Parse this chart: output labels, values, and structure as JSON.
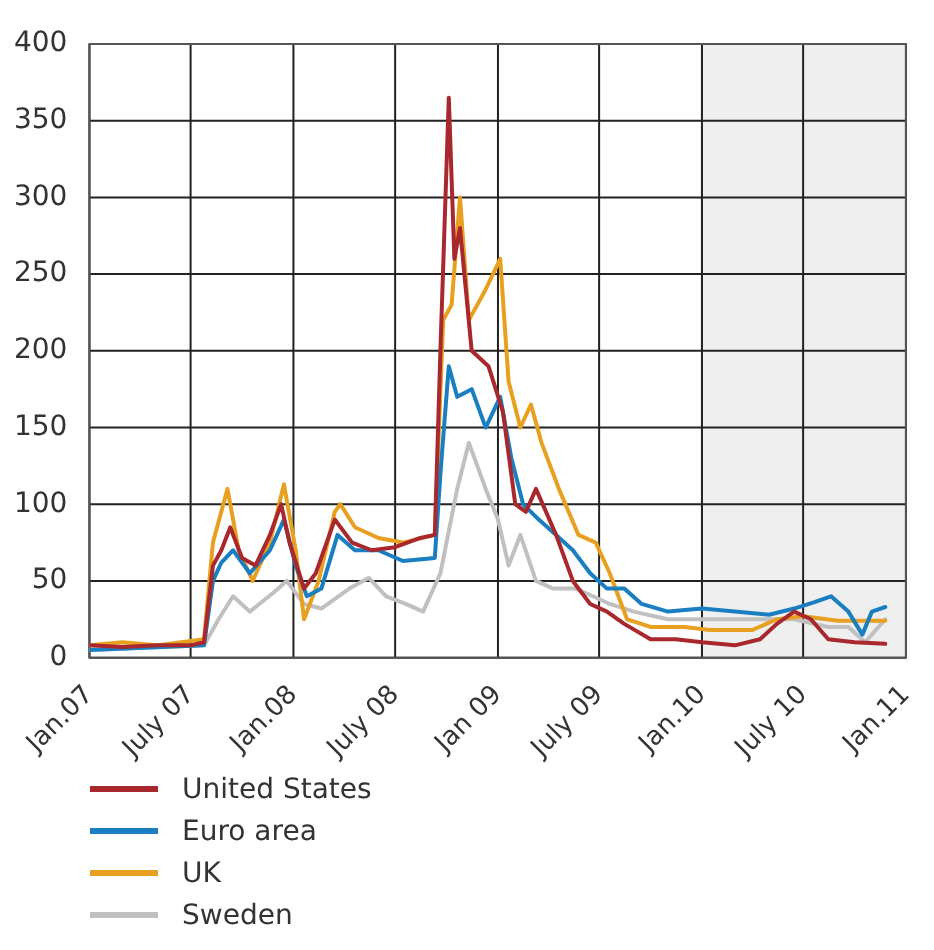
{
  "chart_data": {
    "type": "line",
    "xlim": [
      "2007-01-01",
      "2011-01-01"
    ],
    "xticks": [
      {
        "value": "2007-01-01",
        "label": "Jan.07"
      },
      {
        "value": "2007-07-01",
        "label": "July 07"
      },
      {
        "value": "2008-01-01",
        "label": "Jan.08"
      },
      {
        "value": "2008-07-01",
        "label": "July 08"
      },
      {
        "value": "2009-01-01",
        "label": "Jan 09"
      },
      {
        "value": "2009-07-01",
        "label": "July 09"
      },
      {
        "value": "2010-01-01",
        "label": "Jan.10"
      },
      {
        "value": "2010-07-01",
        "label": "July 10"
      },
      {
        "value": "2011-01-01",
        "label": "Jan.11"
      }
    ],
    "ylim": [
      0,
      400
    ],
    "yticks": [
      0,
      50,
      100,
      150,
      200,
      250,
      300,
      350,
      400
    ],
    "grid": true,
    "legend": "bottom",
    "marker": "none",
    "line_style": "solid",
    "bands": [
      {
        "axis": "x",
        "from": "2010-01-01",
        "to": "2011-01-01",
        "color": "#efefef"
      }
    ],
    "series": [
      {
        "name": "United States",
        "color": "#a8282e",
        "x": [
          "2007-01-01",
          "2007-03-01",
          "2007-05-01",
          "2007-07-01",
          "2007-07-25",
          "2007-08-10",
          "2007-08-25",
          "2007-09-10",
          "2007-10-01",
          "2007-10-25",
          "2007-11-20",
          "2007-12-10",
          "2007-12-25",
          "2008-01-20",
          "2008-02-10",
          "2008-03-15",
          "2008-04-15",
          "2008-05-20",
          "2008-07-01",
          "2008-08-15",
          "2008-09-10",
          "2008-09-20",
          "2008-10-05",
          "2008-10-15",
          "2008-10-25",
          "2008-11-15",
          "2008-12-15",
          "2009-01-10",
          "2009-02-01",
          "2009-02-20",
          "2009-03-10",
          "2009-04-15",
          "2009-05-15",
          "2009-06-15",
          "2009-07-15",
          "2009-08-15",
          "2009-10-01",
          "2009-11-15",
          "2010-01-01",
          "2010-03-01",
          "2010-04-15",
          "2010-05-15",
          "2010-06-15",
          "2010-07-15",
          "2010-08-15",
          "2010-10-01",
          "2010-11-25"
        ],
        "values": [
          8,
          7,
          8,
          8,
          10,
          60,
          70,
          85,
          65,
          60,
          80,
          100,
          75,
          45,
          55,
          90,
          75,
          70,
          72,
          78,
          80,
          200,
          365,
          260,
          280,
          200,
          190,
          160,
          100,
          95,
          110,
          80,
          50,
          35,
          30,
          22,
          12,
          12,
          10,
          8,
          12,
          22,
          30,
          25,
          12,
          10,
          9
        ]
      },
      {
        "name": "Euro area",
        "color": "#1a7fc1",
        "x": [
          "2007-01-01",
          "2007-07-25",
          "2007-08-10",
          "2007-08-25",
          "2007-09-15",
          "2007-10-15",
          "2007-11-20",
          "2007-12-15",
          "2008-01-05",
          "2008-01-25",
          "2008-02-20",
          "2008-03-20",
          "2008-04-20",
          "2008-06-01",
          "2008-07-15",
          "2008-09-10",
          "2008-09-20",
          "2008-10-05",
          "2008-10-20",
          "2008-11-15",
          "2008-12-10",
          "2009-01-05",
          "2009-01-25",
          "2009-02-15",
          "2009-03-15",
          "2009-04-15",
          "2009-05-15",
          "2009-06-15",
          "2009-07-15",
          "2009-08-15",
          "2009-09-15",
          "2009-11-01",
          "2010-01-01",
          "2010-03-01",
          "2010-05-01",
          "2010-06-15",
          "2010-07-20",
          "2010-08-20",
          "2010-09-20",
          "2010-10-15",
          "2010-11-01",
          "2010-11-25"
        ],
        "values": [
          5,
          8,
          50,
          62,
          70,
          55,
          70,
          90,
          60,
          40,
          45,
          80,
          70,
          70,
          63,
          65,
          120,
          190,
          170,
          175,
          150,
          170,
          130,
          100,
          90,
          80,
          70,
          55,
          45,
          45,
          35,
          30,
          32,
          30,
          28,
          32,
          36,
          40,
          30,
          15,
          30,
          33
        ]
      },
      {
        "name": "UK",
        "color": "#e8a020",
        "x": [
          "2007-01-01",
          "2007-03-01",
          "2007-05-01",
          "2007-07-25",
          "2007-08-10",
          "2007-09-05",
          "2007-09-25",
          "2007-10-20",
          "2007-11-20",
          "2007-12-15",
          "2008-01-05",
          "2008-01-20",
          "2008-02-15",
          "2008-03-15",
          "2008-03-25",
          "2008-04-20",
          "2008-06-01",
          "2008-07-15",
          "2008-09-10",
          "2008-09-25",
          "2008-10-10",
          "2008-10-25",
          "2008-11-10",
          "2008-12-10",
          "2009-01-05",
          "2009-01-20",
          "2009-02-10",
          "2009-03-01",
          "2009-03-20",
          "2009-04-20",
          "2009-05-25",
          "2009-06-25",
          "2009-07-20",
          "2009-08-20",
          "2009-10-01",
          "2009-12-01",
          "2010-01-15",
          "2010-04-01",
          "2010-05-15",
          "2010-07-01",
          "2010-09-01",
          "2010-11-25"
        ],
        "values": [
          8,
          10,
          8,
          12,
          75,
          110,
          70,
          50,
          75,
          113,
          70,
          25,
          50,
          95,
          100,
          85,
          78,
          75,
          80,
          220,
          230,
          300,
          220,
          240,
          260,
          180,
          150,
          165,
          140,
          110,
          80,
          75,
          55,
          25,
          20,
          20,
          18,
          18,
          25,
          27,
          24,
          24
        ]
      },
      {
        "name": "Sweden",
        "color": "#c0c0c0",
        "x": [
          "2007-01-01",
          "2007-07-25",
          "2007-08-20",
          "2007-09-15",
          "2007-10-15",
          "2007-11-25",
          "2007-12-20",
          "2008-01-20",
          "2008-02-20",
          "2008-04-10",
          "2008-05-15",
          "2008-06-15",
          "2008-07-20",
          "2008-08-20",
          "2008-09-20",
          "2008-10-20",
          "2008-11-10",
          "2008-12-10",
          "2009-01-01",
          "2009-01-20",
          "2009-02-10",
          "2009-03-10",
          "2009-04-10",
          "2009-05-20",
          "2009-06-20",
          "2009-07-20",
          "2009-09-01",
          "2009-11-01",
          "2010-01-15",
          "2010-04-01",
          "2010-06-15",
          "2010-08-15",
          "2010-09-20",
          "2010-10-20",
          "2010-11-25"
        ],
        "values": [
          5,
          8,
          25,
          40,
          30,
          42,
          50,
          35,
          32,
          45,
          52,
          40,
          35,
          30,
          55,
          110,
          140,
          110,
          90,
          60,
          80,
          50,
          45,
          45,
          40,
          35,
          30,
          25,
          25,
          25,
          25,
          20,
          20,
          10,
          25
        ]
      }
    ]
  }
}
